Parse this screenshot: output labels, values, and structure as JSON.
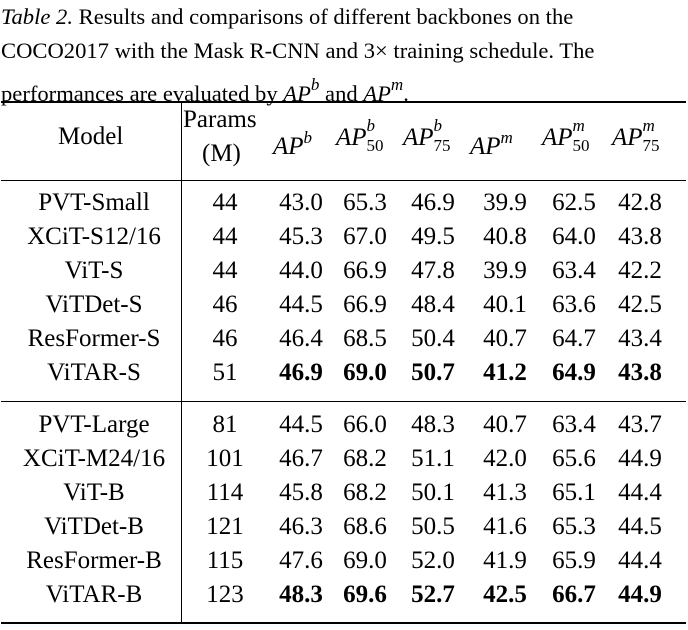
{
  "caption": {
    "label": "Table 2.",
    "text_line1": " Results and comparisons of different backbones on the",
    "text_line2": "COCO2017 with the Mask R-CNN and 3× training schedule. The",
    "text_line3": "performances are evaluated by ",
    "ap_b_base": "AP",
    "ap_b_sup": "b",
    "and": " and ",
    "ap_m_base": "AP",
    "ap_m_sup": "m",
    "period": "."
  },
  "headers": {
    "model": "Model",
    "params_line1": "Params",
    "params_line2": "(M)",
    "ap": "AP",
    "b": "b",
    "m": "m",
    "n50": "50",
    "n75": "75"
  },
  "groups": [
    {
      "rows": [
        {
          "model": "PVT-Small",
          "params": "44",
          "vals": [
            "43.0",
            "65.3",
            "46.9",
            "39.9",
            "62.5",
            "42.8"
          ],
          "bold": false
        },
        {
          "model": "XCiT-S12/16",
          "params": "44",
          "vals": [
            "45.3",
            "67.0",
            "49.5",
            "40.8",
            "64.0",
            "43.8"
          ],
          "bold": false
        },
        {
          "model": "ViT-S",
          "params": "44",
          "vals": [
            "44.0",
            "66.9",
            "47.8",
            "39.9",
            "63.4",
            "42.2"
          ],
          "bold": false
        },
        {
          "model": "ViTDet-S",
          "params": "46",
          "vals": [
            "44.5",
            "66.9",
            "48.4",
            "40.1",
            "63.6",
            "42.5"
          ],
          "bold": false
        },
        {
          "model": "ResFormer-S",
          "params": "46",
          "vals": [
            "46.4",
            "68.5",
            "50.4",
            "40.7",
            "64.7",
            "43.4"
          ],
          "bold": false
        },
        {
          "model": "ViTAR-S",
          "params": "51",
          "vals": [
            "46.9",
            "69.0",
            "50.7",
            "41.2",
            "64.9",
            "43.8"
          ],
          "bold": true
        }
      ]
    },
    {
      "rows": [
        {
          "model": "PVT-Large",
          "params": "81",
          "vals": [
            "44.5",
            "66.0",
            "48.3",
            "40.7",
            "63.4",
            "43.7"
          ],
          "bold": false
        },
        {
          "model": "XCiT-M24/16",
          "params": "101",
          "vals": [
            "46.7",
            "68.2",
            "51.1",
            "42.0",
            "65.6",
            "44.9"
          ],
          "bold": false
        },
        {
          "model": "ViT-B",
          "params": "114",
          "vals": [
            "45.8",
            "68.2",
            "50.1",
            "41.3",
            "65.1",
            "44.4"
          ],
          "bold": false
        },
        {
          "model": "ViTDet-B",
          "params": "121",
          "vals": [
            "46.3",
            "68.6",
            "50.5",
            "41.6",
            "65.3",
            "44.5"
          ],
          "bold": false
        },
        {
          "model": "ResFormer-B",
          "params": "115",
          "vals": [
            "47.6",
            "69.0",
            "52.0",
            "41.9",
            "65.9",
            "44.4"
          ],
          "bold": false
        },
        {
          "model": "ViTAR-B",
          "params": "123",
          "vals": [
            "48.3",
            "69.6",
            "52.7",
            "42.5",
            "66.7",
            "44.9"
          ],
          "bold": true
        }
      ]
    }
  ]
}
